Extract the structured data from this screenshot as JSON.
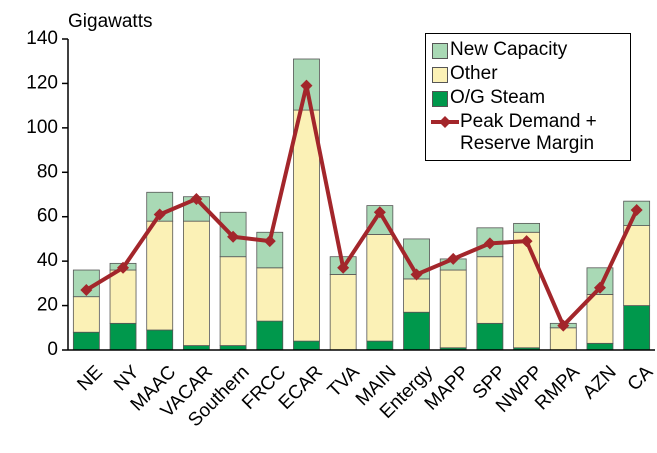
{
  "chart_data": {
    "type": "bar",
    "stacked": true,
    "ylabel": "Gigawatts",
    "categories": [
      "NE",
      "NY",
      "MAAC",
      "VACAR",
      "Southern",
      "FRCC",
      "ECAR",
      "TVA",
      "MAIN",
      "Entergy",
      "MAPP",
      "SPP",
      "NWPP",
      "RMPA",
      "AZN",
      "CA"
    ],
    "series": [
      {
        "name": "O/G Steam",
        "type": "bar",
        "color": "#00984c",
        "values": [
          8,
          12,
          9,
          2,
          2,
          13,
          4,
          0,
          4,
          17,
          1,
          12,
          1,
          0,
          3,
          20
        ]
      },
      {
        "name": "Other",
        "type": "bar",
        "color": "#fbf1b6",
        "values": [
          16,
          24,
          49,
          56,
          40,
          24,
          104,
          34,
          48,
          15,
          35,
          30,
          52,
          10,
          22,
          36
        ]
      },
      {
        "name": "New Capacity",
        "type": "bar",
        "color": "#a9d9b5",
        "values": [
          12,
          3,
          13,
          11,
          20,
          16,
          23,
          8,
          13,
          18,
          5,
          13,
          4,
          2,
          12,
          11
        ]
      },
      {
        "name": "Peak Demand + Reserve Margin",
        "type": "line",
        "color": "#a3262b",
        "values": [
          27,
          37,
          61,
          68,
          51,
          49,
          119,
          37,
          62,
          34,
          41,
          48,
          49,
          11,
          28,
          63
        ]
      }
    ],
    "legend_order": [
      2,
      1,
      0,
      3
    ],
    "legend": "upper right",
    "ylim": [
      0,
      140
    ],
    "yticks": [
      0,
      20,
      40,
      60,
      80,
      100,
      120,
      140
    ],
    "grid": false
  }
}
